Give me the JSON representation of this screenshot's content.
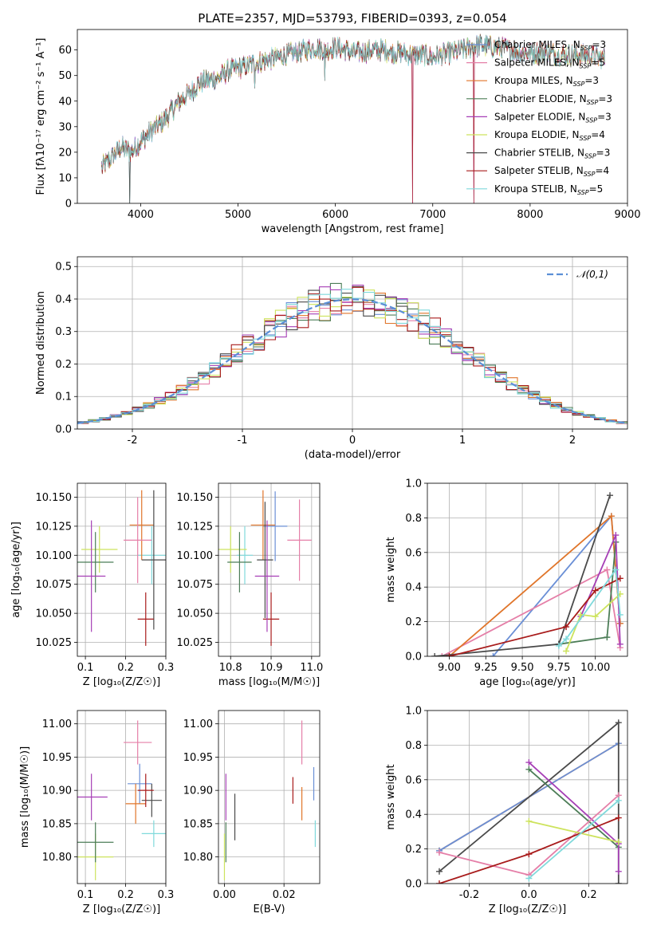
{
  "title": "PLATE=2357, MJD=53793, FIBERID=0393, z=0.054",
  "colors": {
    "chab_miles": "#6a8fd6",
    "salp_miles": "#e57fa8",
    "krou_miles": "#e0752a",
    "chab_elodie": "#4c7d57",
    "salp_elodie": "#a63fb6",
    "krou_elodie": "#cde35d",
    "chab_stelib": "#4a4a4a",
    "salp_stelib": "#a81b1b",
    "krou_stelib": "#7fd9db"
  },
  "legend": [
    {
      "pre": "Chabrier MILES, N",
      "sub": "SSP",
      "post": "=3",
      "color": "#6a8fd6"
    },
    {
      "pre": "Salpeter MILES, N",
      "sub": "SSP",
      "post": "=5",
      "color": "#e57fa8"
    },
    {
      "pre": "Kroupa MILES, N",
      "sub": "SSP",
      "post": "=3",
      "color": "#e0752a"
    },
    {
      "pre": "Chabrier ELODIE, N",
      "sub": "SSP",
      "post": "=3",
      "color": "#4c7d57"
    },
    {
      "pre": "Salpeter ELODIE, N",
      "sub": "SSP",
      "post": "=3",
      "color": "#a63fb6"
    },
    {
      "pre": "Kroupa ELODIE, N",
      "sub": "SSP",
      "post": "=4",
      "color": "#cde35d"
    },
    {
      "pre": "Chabrier STELIB, N",
      "sub": "SSP",
      "post": "=3",
      "color": "#4a4a4a"
    },
    {
      "pre": "Salpeter STELIB, N",
      "sub": "SSP",
      "post": "=4",
      "color": "#a81b1b"
    },
    {
      "pre": "Kroupa STELIB, N",
      "sub": "SSP",
      "post": "=5",
      "color": "#7fd9db"
    }
  ],
  "chart_data": [
    {
      "type": "line",
      "id": "spectrum",
      "xlabel": "wavelength [Angstrom, rest frame]",
      "ylabel": "Flux [fλ10⁻¹⁷ erg cm⁻² s⁻¹ A⁻¹]",
      "xlim": [
        3350,
        9000
      ],
      "ylim": [
        0,
        68
      ],
      "xticks": [
        4000,
        5000,
        6000,
        7000,
        8000,
        9000
      ],
      "yticks": [
        0,
        10,
        20,
        30,
        40,
        50,
        60
      ],
      "continuum": [
        [
          3600,
          14
        ],
        [
          3700,
          18
        ],
        [
          3800,
          22
        ],
        [
          3900,
          20
        ],
        [
          4000,
          24
        ],
        [
          4100,
          28
        ],
        [
          4200,
          31
        ],
        [
          4300,
          35
        ],
        [
          4400,
          40
        ],
        [
          4500,
          43
        ],
        [
          4600,
          47
        ],
        [
          4700,
          48
        ],
        [
          4800,
          49
        ],
        [
          4900,
          52
        ],
        [
          5000,
          53
        ],
        [
          5100,
          54
        ],
        [
          5200,
          55
        ],
        [
          5300,
          56
        ],
        [
          5400,
          57
        ],
        [
          5500,
          58
        ],
        [
          5600,
          59
        ],
        [
          5700,
          60
        ],
        [
          5800,
          61
        ],
        [
          5900,
          60
        ],
        [
          6000,
          61
        ],
        [
          6100,
          60
        ],
        [
          6200,
          59
        ],
        [
          6300,
          59
        ],
        [
          6400,
          60
        ],
        [
          6500,
          60
        ],
        [
          6600,
          59
        ],
        [
          6700,
          59
        ],
        [
          6800,
          58
        ],
        [
          6900,
          58
        ],
        [
          7000,
          57
        ],
        [
          7100,
          58
        ],
        [
          7200,
          59
        ],
        [
          7300,
          60
        ],
        [
          7400,
          61
        ],
        [
          7500,
          62
        ],
        [
          7600,
          61
        ],
        [
          7700,
          61
        ],
        [
          7800,
          60
        ],
        [
          7900,
          59
        ],
        [
          8000,
          59
        ],
        [
          8100,
          59
        ],
        [
          8200,
          59
        ],
        [
          8300,
          58
        ],
        [
          8400,
          58
        ],
        [
          8500,
          58
        ],
        [
          8600,
          58
        ],
        [
          8700,
          57
        ],
        [
          8770,
          57
        ]
      ],
      "dips": [
        [
          3890,
          0
        ],
        [
          5170,
          45
        ],
        [
          5890,
          48
        ],
        [
          6790,
          0
        ],
        [
          7420,
          0
        ]
      ]
    },
    {
      "type": "bar",
      "id": "residuals",
      "xlabel": "(data-model)/error",
      "ylabel": "Normed distribution",
      "xlim": [
        -2.5,
        2.5
      ],
      "ylim": [
        0,
        0.53
      ],
      "xticks": [
        -2,
        -1,
        0,
        1,
        2
      ],
      "yticks": [
        0.0,
        0.1,
        0.2,
        0.3,
        0.4,
        0.5
      ],
      "bin_width": 0.1,
      "bin_start": -2.5,
      "legend_label": "𝒩(0,1)"
    },
    {
      "type": "scatter",
      "id": "age_vs_Z",
      "xlabel": "Z [log₁₀(Z/Z☉)]",
      "ylabel": "age  [log₁₀(age/yr)]",
      "xlim": [
        0.08,
        0.3
      ],
      "ylim": [
        10.013,
        10.162
      ],
      "xticks": [
        0.1,
        0.2,
        0.3
      ],
      "yticks": [
        10.025,
        10.05,
        10.075,
        10.1,
        10.125,
        10.15
      ],
      "points": [
        {
          "x": 0.265,
          "y": 10.1,
          "xerr": 0.035,
          "yerr": 0.025,
          "color": "#7fd9db"
        },
        {
          "x": 0.24,
          "y": 10.126,
          "xerr": 0.03,
          "yerr": 0.03,
          "color": "#e0752a"
        },
        {
          "x": 0.23,
          "y": 10.113,
          "xerr": 0.035,
          "yerr": 0.037,
          "color": "#e57fa8"
        },
        {
          "x": 0.27,
          "y": 10.096,
          "xerr": 0.03,
          "yerr": 0.06,
          "color": "#4a4a4a"
        },
        {
          "x": 0.25,
          "y": 10.045,
          "xerr": 0.02,
          "yerr": 0.023,
          "color": "#a81b1b"
        },
        {
          "x": 0.135,
          "y": 10.105,
          "xerr": 0.045,
          "yerr": 0.02,
          "color": "#cde35d"
        },
        {
          "x": 0.125,
          "y": 10.094,
          "xerr": 0.045,
          "yerr": 0.026,
          "color": "#4c7d57"
        },
        {
          "x": 0.115,
          "y": 10.082,
          "xerr": 0.035,
          "yerr": 0.048,
          "color": "#a63fb6"
        }
      ]
    },
    {
      "type": "scatter",
      "id": "age_vs_mass",
      "xlabel": "mass [log₁₀(M/M☉)]",
      "ylabel": "",
      "xlim": [
        10.77,
        11.02
      ],
      "ylim": [
        10.013,
        10.162
      ],
      "xticks": [
        10.8,
        10.9,
        11.0
      ],
      "yticks": [
        10.025,
        10.05,
        10.075,
        10.1,
        10.125,
        10.15
      ],
      "points": [
        {
          "x": 10.835,
          "y": 10.1,
          "xerr": 0.02,
          "yerr": 0.025,
          "color": "#7fd9db"
        },
        {
          "x": 10.91,
          "y": 10.125,
          "xerr": 0.03,
          "yerr": 0.03,
          "color": "#6a8fd6"
        },
        {
          "x": 10.88,
          "y": 10.126,
          "xerr": 0.03,
          "yerr": 0.03,
          "color": "#e0752a"
        },
        {
          "x": 10.97,
          "y": 10.113,
          "xerr": 0.03,
          "yerr": 0.035,
          "color": "#e57fa8"
        },
        {
          "x": 10.885,
          "y": 10.096,
          "xerr": 0.02,
          "yerr": 0.05,
          "color": "#4a4a4a"
        },
        {
          "x": 10.9,
          "y": 10.045,
          "xerr": 0.02,
          "yerr": 0.023,
          "color": "#a81b1b"
        },
        {
          "x": 10.8,
          "y": 10.105,
          "xerr": 0.04,
          "yerr": 0.02,
          "color": "#cde35d"
        },
        {
          "x": 10.822,
          "y": 10.094,
          "xerr": 0.03,
          "yerr": 0.026,
          "color": "#4c7d57"
        },
        {
          "x": 10.89,
          "y": 10.082,
          "xerr": 0.03,
          "yerr": 0.048,
          "color": "#a63fb6"
        }
      ]
    },
    {
      "type": "line",
      "id": "weight_vs_age",
      "xlabel": "age  [log₁₀(age/yr)]",
      "ylabel": "mass weight",
      "xlim": [
        8.85,
        10.22
      ],
      "ylim": [
        0,
        1.0
      ],
      "xticks": [
        9.0,
        9.25,
        9.5,
        9.75,
        10.0
      ],
      "yticks": [
        0.0,
        0.2,
        0.4,
        0.6,
        0.8,
        1.0
      ],
      "series": [
        {
          "color": "#6a8fd6",
          "x": [
            9.3,
            10.11,
            10.17
          ],
          "y": [
            0.0,
            0.81,
            0.19
          ]
        },
        {
          "color": "#e57fa8",
          "x": [
            8.95,
            10.08,
            10.17
          ],
          "y": [
            0.0,
            0.5,
            0.05
          ]
        },
        {
          "color": "#e0752a",
          "x": [
            9.0,
            10.11,
            10.17
          ],
          "y": [
            0.0,
            0.81,
            0.19
          ]
        },
        {
          "color": "#4c7d57",
          "x": [
            9.75,
            10.08,
            10.14
          ],
          "y": [
            0.07,
            0.11,
            0.66
          ]
        },
        {
          "color": "#a63fb6",
          "x": [
            9.9,
            10.14,
            10.17
          ],
          "y": [
            0.23,
            0.7,
            0.07
          ]
        },
        {
          "color": "#cde35d",
          "x": [
            9.8,
            9.9,
            10.0,
            10.17
          ],
          "y": [
            0.03,
            0.24,
            0.23,
            0.36
          ]
        },
        {
          "color": "#4a4a4a",
          "x": [
            8.9,
            9.75,
            10.1
          ],
          "y": [
            0.0,
            0.07,
            0.93
          ]
        },
        {
          "color": "#a81b1b",
          "x": [
            9.0,
            9.8,
            10.0,
            10.17
          ],
          "y": [
            0.0,
            0.17,
            0.38,
            0.45
          ]
        },
        {
          "color": "#7fd9db",
          "x": [
            9.75,
            9.8,
            10.14,
            10.17
          ],
          "y": [
            0.06,
            0.1,
            0.5,
            0.24
          ]
        }
      ]
    },
    {
      "type": "scatter",
      "id": "mass_vs_Z",
      "xlabel": "Z [log₁₀(Z/Z☉)]",
      "ylabel": "mass [log₁₀(M/M☉)]",
      "xlim": [
        0.08,
        0.3
      ],
      "ylim": [
        10.76,
        11.02
      ],
      "xticks": [
        0.1,
        0.2,
        0.3
      ],
      "yticks": [
        10.8,
        10.85,
        10.9,
        10.95,
        11.0
      ],
      "points": [
        {
          "x": 0.27,
          "y": 10.835,
          "xerr": 0.03,
          "yerr": 0.02,
          "color": "#7fd9db"
        },
        {
          "x": 0.235,
          "y": 10.91,
          "xerr": 0.03,
          "yerr": 0.03,
          "color": "#6a8fd6"
        },
        {
          "x": 0.225,
          "y": 10.88,
          "xerr": 0.025,
          "yerr": 0.03,
          "color": "#e0752a"
        },
        {
          "x": 0.23,
          "y": 10.972,
          "xerr": 0.035,
          "yerr": 0.033,
          "color": "#e57fa8"
        },
        {
          "x": 0.265,
          "y": 10.885,
          "xerr": 0.025,
          "yerr": 0.025,
          "color": "#4a4a4a"
        },
        {
          "x": 0.25,
          "y": 10.9,
          "xerr": 0.02,
          "yerr": 0.025,
          "color": "#a81b1b"
        },
        {
          "x": 0.125,
          "y": 10.8,
          "xerr": 0.045,
          "yerr": 0.035,
          "color": "#cde35d"
        },
        {
          "x": 0.125,
          "y": 10.822,
          "xerr": 0.045,
          "yerr": 0.03,
          "color": "#4c7d57"
        },
        {
          "x": 0.115,
          "y": 10.89,
          "xerr": 0.04,
          "yerr": 0.035,
          "color": "#a63fb6"
        }
      ]
    },
    {
      "type": "scatter",
      "id": "mass_vs_ebv",
      "xlabel": "E(B-V)",
      "ylabel": "",
      "xlim": [
        -0.002,
        0.032
      ],
      "ylim": [
        10.76,
        11.02
      ],
      "xticks": [
        0.0,
        0.02
      ],
      "yticks": [
        10.8,
        10.85,
        10.9,
        10.95,
        11.0
      ],
      "points": [
        {
          "x": 0.0305,
          "y": 10.835,
          "xerr": 0.0,
          "yerr": 0.02,
          "color": "#7fd9db"
        },
        {
          "x": 0.03,
          "y": 10.91,
          "xerr": 0.0,
          "yerr": 0.025,
          "color": "#6a8fd6"
        },
        {
          "x": 0.026,
          "y": 10.88,
          "xerr": 0.0,
          "yerr": 0.025,
          "color": "#e0752a"
        },
        {
          "x": 0.026,
          "y": 10.972,
          "xerr": 0.0,
          "yerr": 0.033,
          "color": "#e57fa8"
        },
        {
          "x": 0.0035,
          "y": 10.86,
          "xerr": 0.0,
          "yerr": 0.035,
          "color": "#4a4a4a"
        },
        {
          "x": 0.023,
          "y": 10.9,
          "xerr": 0.0,
          "yerr": 0.02,
          "color": "#a81b1b"
        },
        {
          "x": 0.0,
          "y": 10.8,
          "xerr": 0.0,
          "yerr": 0.035,
          "color": "#cde35d"
        },
        {
          "x": 0.0005,
          "y": 10.822,
          "xerr": 0.0,
          "yerr": 0.03,
          "color": "#4c7d57"
        },
        {
          "x": 0.0005,
          "y": 10.89,
          "xerr": 0.0,
          "yerr": 0.035,
          "color": "#a63fb6"
        }
      ]
    },
    {
      "type": "line",
      "id": "weight_vs_Z",
      "xlabel": "Z [log₁₀(Z/Z☉)]",
      "ylabel": "mass weight",
      "xlim": [
        -0.34,
        0.33
      ],
      "ylim": [
        0,
        1.0
      ],
      "xticks": [
        -0.2,
        0.0,
        0.2
      ],
      "yticks": [
        0.0,
        0.2,
        0.4,
        0.6,
        0.8,
        1.0
      ],
      "series": [
        {
          "color": "#e0752a",
          "x": [
            -0.3,
            0.3
          ],
          "y": [
            0.19,
            0.81
          ]
        },
        {
          "color": "#6a8fd6",
          "x": [
            -0.3,
            0.3
          ],
          "y": [
            0.19,
            0.81
          ]
        },
        {
          "color": "#4a4a4a",
          "x": [
            -0.3,
            0.3,
            0.3
          ],
          "y": [
            0.07,
            0.93,
            0.0
          ]
        },
        {
          "color": "#4c7d57",
          "x": [
            0.0,
            0.3
          ],
          "y": [
            0.66,
            0.21
          ]
        },
        {
          "color": "#a63fb6",
          "x": [
            0.0,
            0.3,
            0.3
          ],
          "y": [
            0.7,
            0.23,
            0.07
          ]
        },
        {
          "color": "#e57fa8",
          "x": [
            -0.3,
            0.0,
            0.3
          ],
          "y": [
            0.18,
            0.05,
            0.51
          ]
        },
        {
          "color": "#cde35d",
          "x": [
            0.0,
            0.3
          ],
          "y": [
            0.36,
            0.24
          ]
        },
        {
          "color": "#a81b1b",
          "x": [
            -0.3,
            0.0,
            0.3
          ],
          "y": [
            0.0,
            0.17,
            0.38
          ]
        },
        {
          "color": "#7fd9db",
          "x": [
            0.0,
            0.3
          ],
          "y": [
            0.03,
            0.48
          ]
        }
      ]
    }
  ]
}
